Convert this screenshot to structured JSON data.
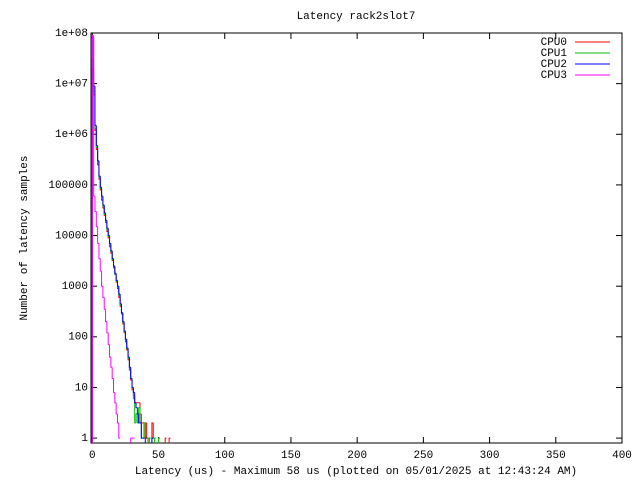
{
  "chart_data": {
    "type": "step",
    "title": "Latency rack2slot7",
    "x_label": "Latency (us) - Maximum 58 us (plotted on 05/01/2025 at 12:43:24 AM)",
    "y_label": "Number of latency samples",
    "log_y": true,
    "legend": "top-right",
    "x": [
      0,
      1,
      2,
      3,
      4,
      5,
      6,
      7,
      8,
      9,
      10,
      11,
      12,
      13,
      14,
      15,
      16,
      17,
      18,
      19,
      20,
      21,
      22,
      23,
      24,
      25,
      26,
      27,
      28,
      29,
      30,
      31,
      32,
      33,
      34,
      35,
      36,
      37,
      38,
      39,
      40,
      41,
      42,
      43,
      44,
      45,
      46,
      47,
      48,
      49,
      50,
      51,
      52,
      53,
      54,
      55,
      56,
      57,
      58
    ],
    "series": [
      {
        "name": "CPU0",
        "color": "#ff0000",
        "values": [
          20000000,
          6000000,
          1200000,
          500000,
          250000,
          130000,
          80000,
          50000,
          35000,
          25000,
          18000,
          12000,
          9000,
          6000,
          4500,
          3200,
          2300,
          1700,
          1200,
          900,
          600,
          400,
          280,
          180,
          120,
          80,
          55,
          35,
          22,
          14,
          9,
          7,
          5,
          5,
          5,
          5,
          3,
          2,
          2,
          1,
          2,
          1,
          null,
          1,
          null,
          2,
          1,
          null,
          null,
          null,
          1,
          null,
          null,
          null,
          null,
          1,
          null,
          null,
          1
        ]
      },
      {
        "name": "CPU1",
        "color": "#00c000",
        "values": [
          30000000,
          7000000,
          1300000,
          550000,
          280000,
          140000,
          85000,
          55000,
          38000,
          26000,
          19000,
          13000,
          9500,
          6500,
          4800,
          3300,
          2400,
          1700,
          1250,
          950,
          650,
          420,
          290,
          190,
          125,
          85,
          58,
          38,
          24,
          15,
          10,
          6,
          2,
          3,
          2,
          4,
          2,
          1,
          1,
          2,
          1,
          null,
          1,
          1,
          null,
          1,
          null,
          1,
          null,
          null,
          1,
          null,
          null,
          null,
          null,
          null,
          null,
          null,
          null
        ]
      },
      {
        "name": "CPU2",
        "color": "#0000ff",
        "values": [
          80000000,
          9000000,
          1500000,
          600000,
          300000,
          150000,
          90000,
          60000,
          40000,
          28000,
          20000,
          14000,
          10000,
          7000,
          5000,
          3500,
          2500,
          1800,
          1300,
          1000,
          700,
          450,
          300,
          200,
          130,
          90,
          60,
          40,
          25,
          15,
          10,
          8,
          5,
          4,
          3,
          2,
          2,
          1,
          1,
          null,
          1,
          null,
          null,
          null,
          null,
          1,
          null,
          null,
          null,
          null,
          null,
          null,
          null,
          null,
          null,
          null,
          null,
          null,
          null
        ]
      },
      {
        "name": "CPU3",
        "color": "#ff00ff",
        "values": [
          90000000,
          60000,
          30000,
          15000,
          7000,
          3500,
          2000,
          1000,
          600,
          350,
          200,
          120,
          70,
          40,
          25,
          15,
          8,
          5,
          3,
          2,
          1,
          null,
          null,
          null,
          null,
          null,
          null,
          null,
          null,
          1,
          1,
          1,
          null,
          null,
          null,
          null,
          null,
          null,
          null,
          null,
          null,
          null,
          null,
          null,
          null,
          null,
          null,
          null,
          null,
          null,
          null,
          null,
          null,
          null,
          null,
          null,
          null,
          null,
          null
        ]
      }
    ],
    "xlim": [
      -1,
      400
    ],
    "xticks": [
      0,
      50,
      100,
      150,
      200,
      250,
      300,
      350,
      400
    ],
    "ylim": [
      0.8,
      100000000
    ],
    "yticks": [
      1,
      10,
      100,
      1000,
      10000,
      100000,
      {
        "value": 1000000,
        "label": "1e+06"
      },
      {
        "value": 10000000,
        "label": "1e+07"
      },
      {
        "value": 100000000,
        "label": "1e+08"
      }
    ]
  }
}
